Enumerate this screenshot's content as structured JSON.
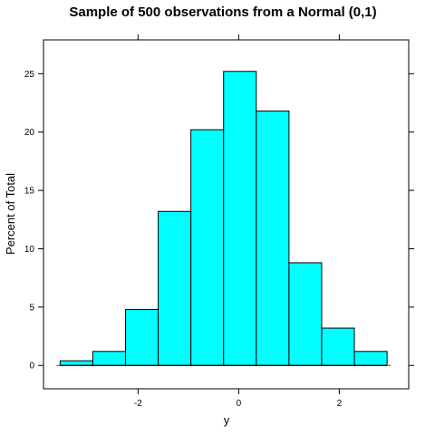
{
  "chart_data": {
    "type": "bar",
    "title": "Sample of 500 observations from a Normal (0,1)",
    "xlabel": "y",
    "ylabel": "Percent of Total",
    "xlim": [
      -3.88,
      3.38
    ],
    "ylim": [
      -2.0,
      27.9
    ],
    "x_ticks": [
      -2,
      0,
      2
    ],
    "x_tick_labels": [
      "-2",
      "0",
      "2"
    ],
    "y_ticks": [
      0,
      5,
      10,
      15,
      20,
      25
    ],
    "y_tick_labels": [
      "0",
      "5",
      "10",
      "15",
      "20",
      "25"
    ],
    "bins": [
      {
        "from": -3.55,
        "to": -2.9,
        "value": 0.4
      },
      {
        "from": -2.9,
        "to": -2.25,
        "value": 1.2
      },
      {
        "from": -2.25,
        "to": -1.6,
        "value": 4.8
      },
      {
        "from": -1.6,
        "to": -0.95,
        "value": 13.2
      },
      {
        "from": -0.95,
        "to": -0.3,
        "value": 20.2
      },
      {
        "from": -0.3,
        "to": 0.35,
        "value": 25.2
      },
      {
        "from": 0.35,
        "to": 1.0,
        "value": 21.8
      },
      {
        "from": 1.0,
        "to": 1.65,
        "value": 8.8
      },
      {
        "from": 1.65,
        "to": 2.3,
        "value": 3.2
      },
      {
        "from": 2.3,
        "to": 2.95,
        "value": 1.2
      }
    ],
    "bar_color": "#00ffff",
    "bar_border_color": "#000000",
    "baseline_color": "#ff0000",
    "grid": false
  }
}
